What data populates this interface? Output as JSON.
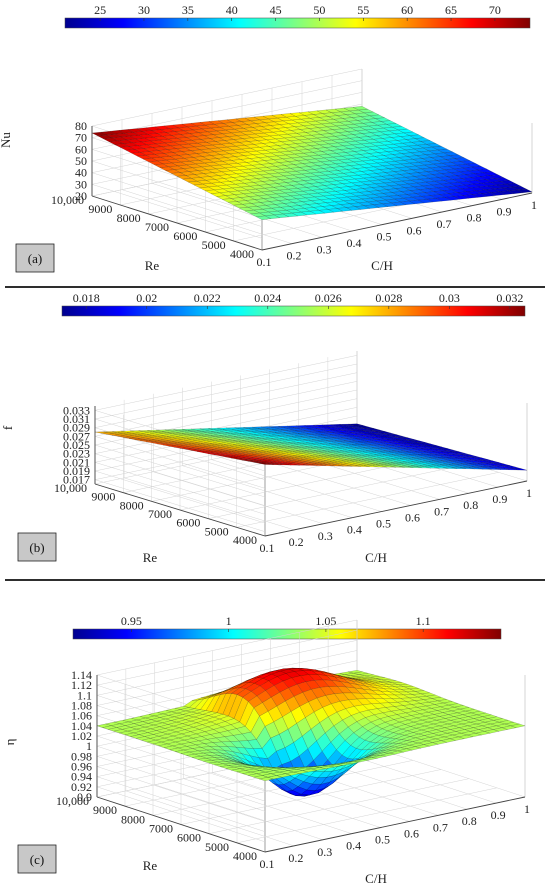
{
  "chart_data": [
    {
      "type": "surface",
      "panel_label": "(a)",
      "z_label": "Nu",
      "x_label": "C/H",
      "y_label": "Re",
      "x_ticks": [
        "0.1",
        "0.2",
        "0.3",
        "0.4",
        "0.5",
        "0.6",
        "0.7",
        "0.8",
        "0.9",
        "1"
      ],
      "y_ticks": [
        "4000",
        "5000",
        "6000",
        "7000",
        "8000",
        "9000",
        "10,000"
      ],
      "z_ticks": [
        "20",
        "30",
        "40",
        "50",
        "60",
        "70",
        "80"
      ],
      "colorbar_ticks": [
        "25",
        "30",
        "35",
        "40",
        "45",
        "50",
        "55",
        "60",
        "65",
        "70"
      ],
      "colorbar_range": [
        21,
        74
      ],
      "z_range": [
        20,
        80
      ],
      "surface": {
        "model": "plane",
        "z_at_back_left": 74,
        "z_at_back_right": 48,
        "z_at_front_left": 46,
        "z_at_front_right": 21
      }
    },
    {
      "type": "surface",
      "panel_label": "(b)",
      "z_label": "f",
      "x_label": "C/H",
      "y_label": "Re",
      "x_ticks": [
        "0.1",
        "0.2",
        "0.3",
        "0.4",
        "0.5",
        "0.6",
        "0.7",
        "0.8",
        "0.9",
        "1"
      ],
      "y_ticks": [
        "4000",
        "5000",
        "6000",
        "7000",
        "8000",
        "9000",
        "10,000"
      ],
      "z_ticks": [
        "0.017",
        "0.019",
        "0.021",
        "0.023",
        "0.025",
        "0.027",
        "0.029",
        "0.031",
        "0.033"
      ],
      "colorbar_ticks": [
        "0.018",
        "0.02",
        "0.022",
        "0.024",
        "0.026",
        "0.028",
        "0.03",
        "0.032"
      ],
      "colorbar_range": [
        0.0172,
        0.0325
      ],
      "z_range": [
        0.016,
        0.034
      ],
      "surface": {
        "model": "plane",
        "z_at_back_left": 0.028,
        "z_at_back_right": 0.0172,
        "z_at_front_left": 0.0325,
        "z_at_front_right": 0.0185
      }
    },
    {
      "type": "surface",
      "panel_label": "(c)",
      "z_label": "η",
      "x_label": "C/H",
      "y_label": "Re",
      "x_ticks": [
        "0.1",
        "0.2",
        "0.3",
        "0.4",
        "0.5",
        "0.6",
        "0.7",
        "0.8",
        "0.9",
        "1"
      ],
      "y_ticks": [
        "4000",
        "5000",
        "6000",
        "7000",
        "8000",
        "9000",
        "10,000"
      ],
      "z_ticks": [
        "0.9",
        "0.92",
        "0.94",
        "0.96",
        "0.98",
        "1",
        "1.02",
        "1.04",
        "1.06",
        "1.08",
        "1.1",
        "1.12",
        "1.14"
      ],
      "colorbar_ticks": [
        "0.95",
        "1",
        "1.05",
        "1.1"
      ],
      "colorbar_range": [
        0.92,
        1.14
      ],
      "z_range": [
        0.9,
        1.14
      ],
      "surface": {
        "model": "fold",
        "z_flat": 1.04,
        "ridge_peak": 1.12,
        "trough_low": 0.93
      }
    }
  ]
}
